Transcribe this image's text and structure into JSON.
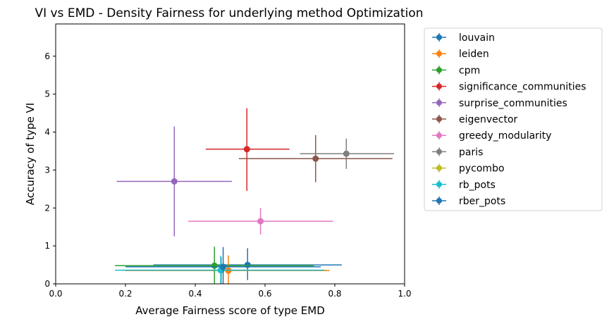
{
  "chart_data": {
    "type": "scatter",
    "title": "VI vs EMD - Density Fairness for underlying method Optimization",
    "xlabel": "Average Fairness score of type EMD",
    "ylabel": "Accuracy of type VI",
    "xlim": [
      0,
      1.0
    ],
    "ylim": [
      0,
      6.85
    ],
    "xticks": [
      "0.0",
      "0.2",
      "0.4",
      "0.6",
      "0.8",
      "1.0"
    ],
    "yticks": [
      "0",
      "1",
      "2",
      "3",
      "4",
      "5",
      "6"
    ],
    "grid": false,
    "legend_position": "outside-right",
    "series": [
      {
        "name": "louvain",
        "color": "#1f77b4",
        "x": 0.55,
        "y": 0.5,
        "xerr": [
          0.28,
          0.82
        ],
        "yerr": [
          0.1,
          0.94
        ]
      },
      {
        "name": "leiden",
        "color": "#ff7f0e",
        "x": 0.495,
        "y": 0.35,
        "xerr": [
          0.2,
          0.785
        ],
        "yerr": [
          0.0,
          0.75
        ]
      },
      {
        "name": "cpm",
        "color": "#2ca02c",
        "x": 0.455,
        "y": 0.48,
        "xerr": [
          0.17,
          0.74
        ],
        "yerr": [
          0.0,
          0.98
        ]
      },
      {
        "name": "significance_communities",
        "color": "#d62728",
        "x": 0.548,
        "y": 3.55,
        "xerr": [
          0.43,
          0.67
        ],
        "yerr": [
          2.45,
          4.63
        ]
      },
      {
        "name": "surprise_communities",
        "color": "#9467bd",
        "x": 0.34,
        "y": 2.7,
        "xerr": [
          0.175,
          0.505
        ],
        "yerr": [
          1.25,
          4.15
        ]
      },
      {
        "name": "eigenvector",
        "color": "#8c564b",
        "x": 0.745,
        "y": 3.3,
        "xerr": [
          0.525,
          0.965
        ],
        "yerr": [
          2.68,
          3.92
        ]
      },
      {
        "name": "greedy_modularity",
        "color": "#e377c2",
        "x": 0.587,
        "y": 1.65,
        "xerr": [
          0.38,
          0.795
        ],
        "yerr": [
          1.3,
          2.0
        ]
      },
      {
        "name": "paris",
        "color": "#7f7f7f",
        "x": 0.833,
        "y": 3.43,
        "xerr": [
          0.7,
          0.97
        ],
        "yerr": [
          3.03,
          3.83
        ]
      },
      {
        "name": "pycombo",
        "color": "#bcbd22",
        "x": 0.475,
        "y": 0.36,
        "xerr": [
          0.19,
          0.775
        ],
        "yerr": [
          0.0,
          0.7
        ]
      },
      {
        "name": "rb_pots",
        "color": "#17becf",
        "x": 0.473,
        "y": 0.36,
        "xerr": [
          0.17,
          0.77
        ],
        "yerr": [
          0.0,
          0.74
        ]
      },
      {
        "name": "rber_pots",
        "color": "#1f77b4",
        "x": 0.48,
        "y": 0.45,
        "xerr": [
          0.2,
          0.76
        ],
        "yerr": [
          0.0,
          0.97
        ]
      }
    ]
  }
}
